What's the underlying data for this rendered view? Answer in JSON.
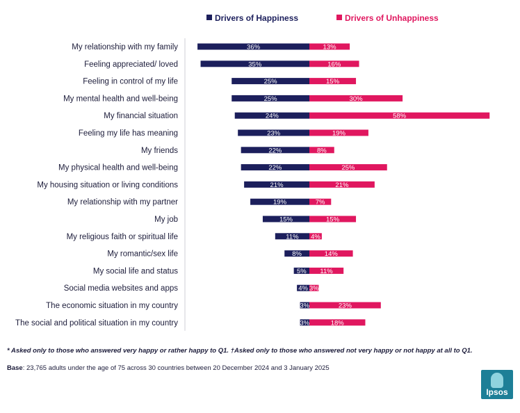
{
  "chart_data": {
    "type": "bar",
    "orientation": "diverging-horizontal",
    "series": [
      {
        "name": "Drivers of Happiness",
        "color": "#1c1f5c",
        "values": [
          36,
          35,
          25,
          25,
          24,
          23,
          22,
          22,
          21,
          19,
          15,
          11,
          8,
          5,
          4,
          3,
          3
        ]
      },
      {
        "name": "Drivers of Unhappiness",
        "color": "#e0175f",
        "values": [
          13,
          16,
          15,
          30,
          58,
          19,
          8,
          25,
          21,
          7,
          15,
          4,
          14,
          11,
          3,
          23,
          18
        ]
      }
    ],
    "categories": [
      "My relationship with my family",
      "Feeling appreciated/ loved",
      "Feeling in control of my life",
      "My mental health and well-being",
      "My financial situation",
      "Feeling my life has meaning",
      "My friends",
      "My physical health and well-being",
      "My housing situation or living conditions",
      "My relationship with my partner",
      "My job",
      "My religious faith or spiritual life",
      "My romantic/sex life",
      "My social life and status",
      "Social media websites and apps",
      "The economic situation in my country",
      "The social and political situation in my country"
    ],
    "value_suffix": "%",
    "xlim": [
      -36,
      58
    ],
    "legend_position": "top"
  },
  "footnote": "* Asked only to those who answered very happy or rather happy to Q1. †Asked only to those who answered not very happy or not happy at all to Q1.",
  "base": {
    "label": "Base",
    "text": ": 23,765 adults under the age of 75 across 30 countries between  20 December 2024 and 3 January 2025"
  },
  "logo": {
    "text": "Ipsos"
  }
}
